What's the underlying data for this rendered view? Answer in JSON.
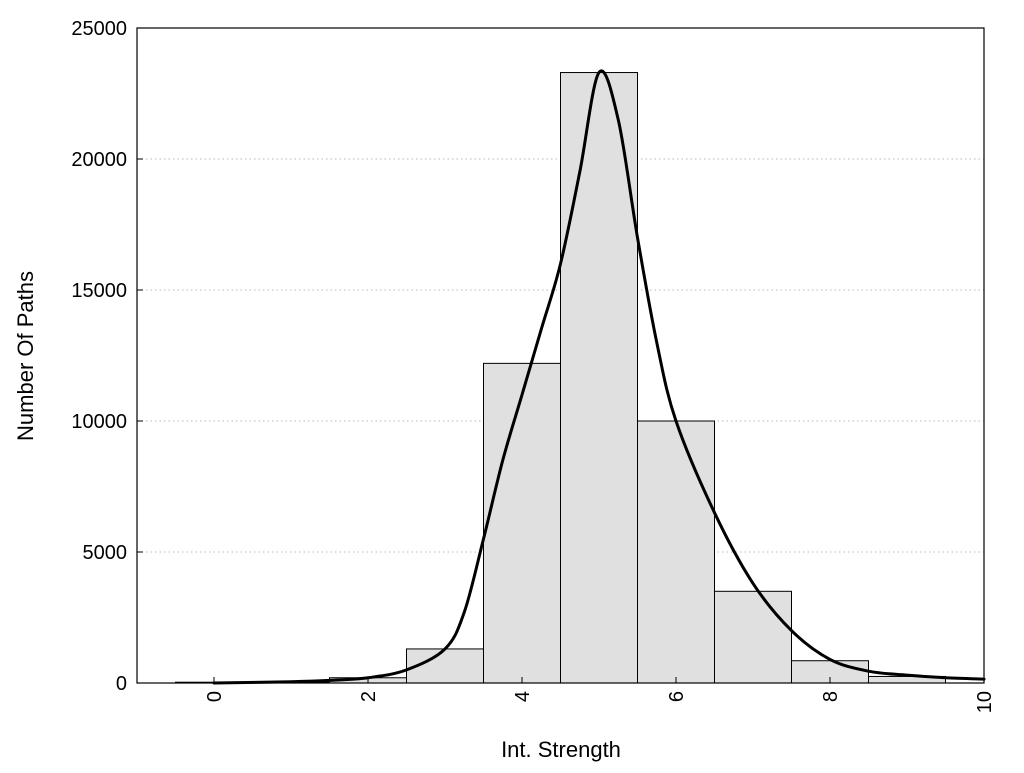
{
  "chart_data": {
    "type": "bar",
    "title": "",
    "xlabel": "Int. Strength",
    "ylabel": "Number Of Paths",
    "xlim": [
      -1,
      10
    ],
    "ylim": [
      0,
      25000
    ],
    "grid": "horizontal dotted",
    "x_ticks": [
      "0",
      "2",
      "4",
      "6",
      "8",
      "10"
    ],
    "y_ticks": [
      "0",
      "5000",
      "10000",
      "15000",
      "20000",
      "25000"
    ],
    "x_tick_values": [
      0,
      2,
      4,
      6,
      8,
      10
    ],
    "y_tick_values": [
      0,
      5000,
      10000,
      15000,
      20000,
      25000
    ],
    "bar_color": "#e0e0e0",
    "series": [
      {
        "type": "histogram",
        "bins": [
          {
            "x": 0,
            "value": 30
          },
          {
            "x": 1,
            "value": 30
          },
          {
            "x": 2,
            "value": 200
          },
          {
            "x": 3,
            "value": 1300
          },
          {
            "x": 4,
            "value": 12200
          },
          {
            "x": 5,
            "value": 23300
          },
          {
            "x": 6,
            "value": 10000
          },
          {
            "x": 7,
            "value": 3500
          },
          {
            "x": 8,
            "value": 850
          },
          {
            "x": 9,
            "value": 250
          }
        ],
        "bin_width": 1
      },
      {
        "type": "line",
        "x": [
          0,
          1,
          1.5,
          2,
          2.5,
          3,
          3.25,
          3.5,
          3.75,
          4,
          4.25,
          4.5,
          4.75,
          5,
          5.25,
          5.5,
          5.75,
          6,
          6.5,
          7,
          7.5,
          8,
          8.5,
          9,
          9.5,
          10
        ],
        "y": [
          0,
          50,
          100,
          200,
          500,
          1300,
          2700,
          5500,
          8500,
          11000,
          13500,
          16000,
          19500,
          23300,
          21500,
          17000,
          13000,
          10000,
          6500,
          3800,
          2000,
          900,
          450,
          300,
          200,
          150
        ]
      }
    ]
  }
}
